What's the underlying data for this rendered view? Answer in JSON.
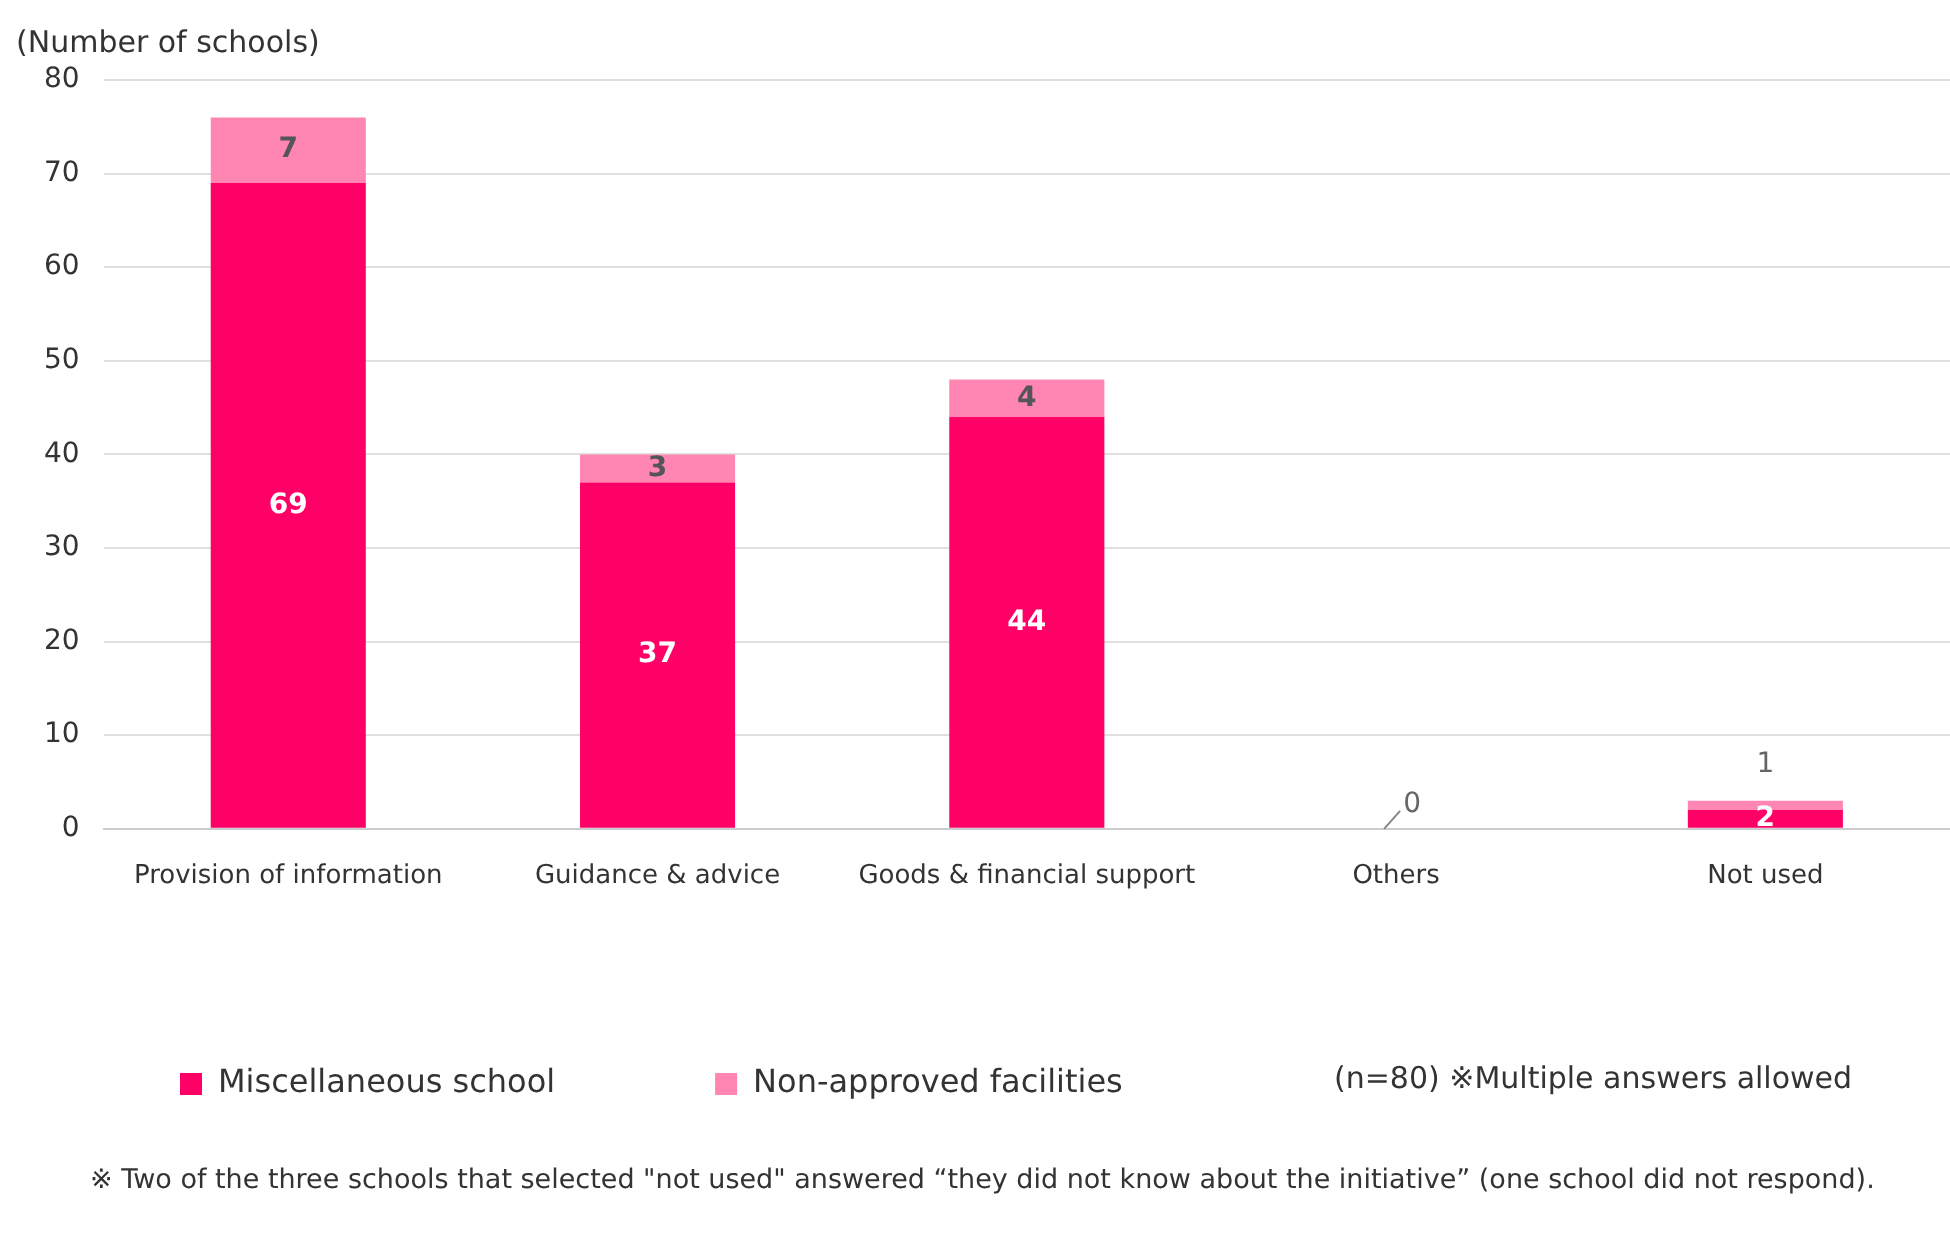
{
  "chart_data": {
    "type": "bar",
    "stacked": true,
    "ylabel": "(Number of schools)",
    "categories": [
      "Provision of information",
      "Guidance & advice",
      "Goods & financial support",
      "Others",
      "Not used"
    ],
    "series": [
      {
        "name": "Miscellaneous school",
        "color": "#ff0066",
        "values": [
          69,
          37,
          44,
          0,
          2
        ],
        "value_labels": [
          "69",
          "37",
          "44",
          null,
          "2"
        ]
      },
      {
        "name": "Non-approved facilities",
        "color": "#ff85b3",
        "values": [
          7,
          3,
          4,
          0,
          1
        ],
        "value_labels": [
          "7",
          "3",
          "4",
          "0",
          "1"
        ]
      }
    ],
    "ylim": [
      0,
      80
    ],
    "yticks": [
      0,
      10,
      20,
      30,
      40,
      50,
      60,
      70,
      80
    ],
    "grid": "y",
    "legend": "bottom",
    "annotations": [
      "(n=80) ※Multiple answers allowed",
      "※ Two of the three schools that selected \"not used\" answered “they did not know about the initiative” (one school did not respond)."
    ]
  }
}
